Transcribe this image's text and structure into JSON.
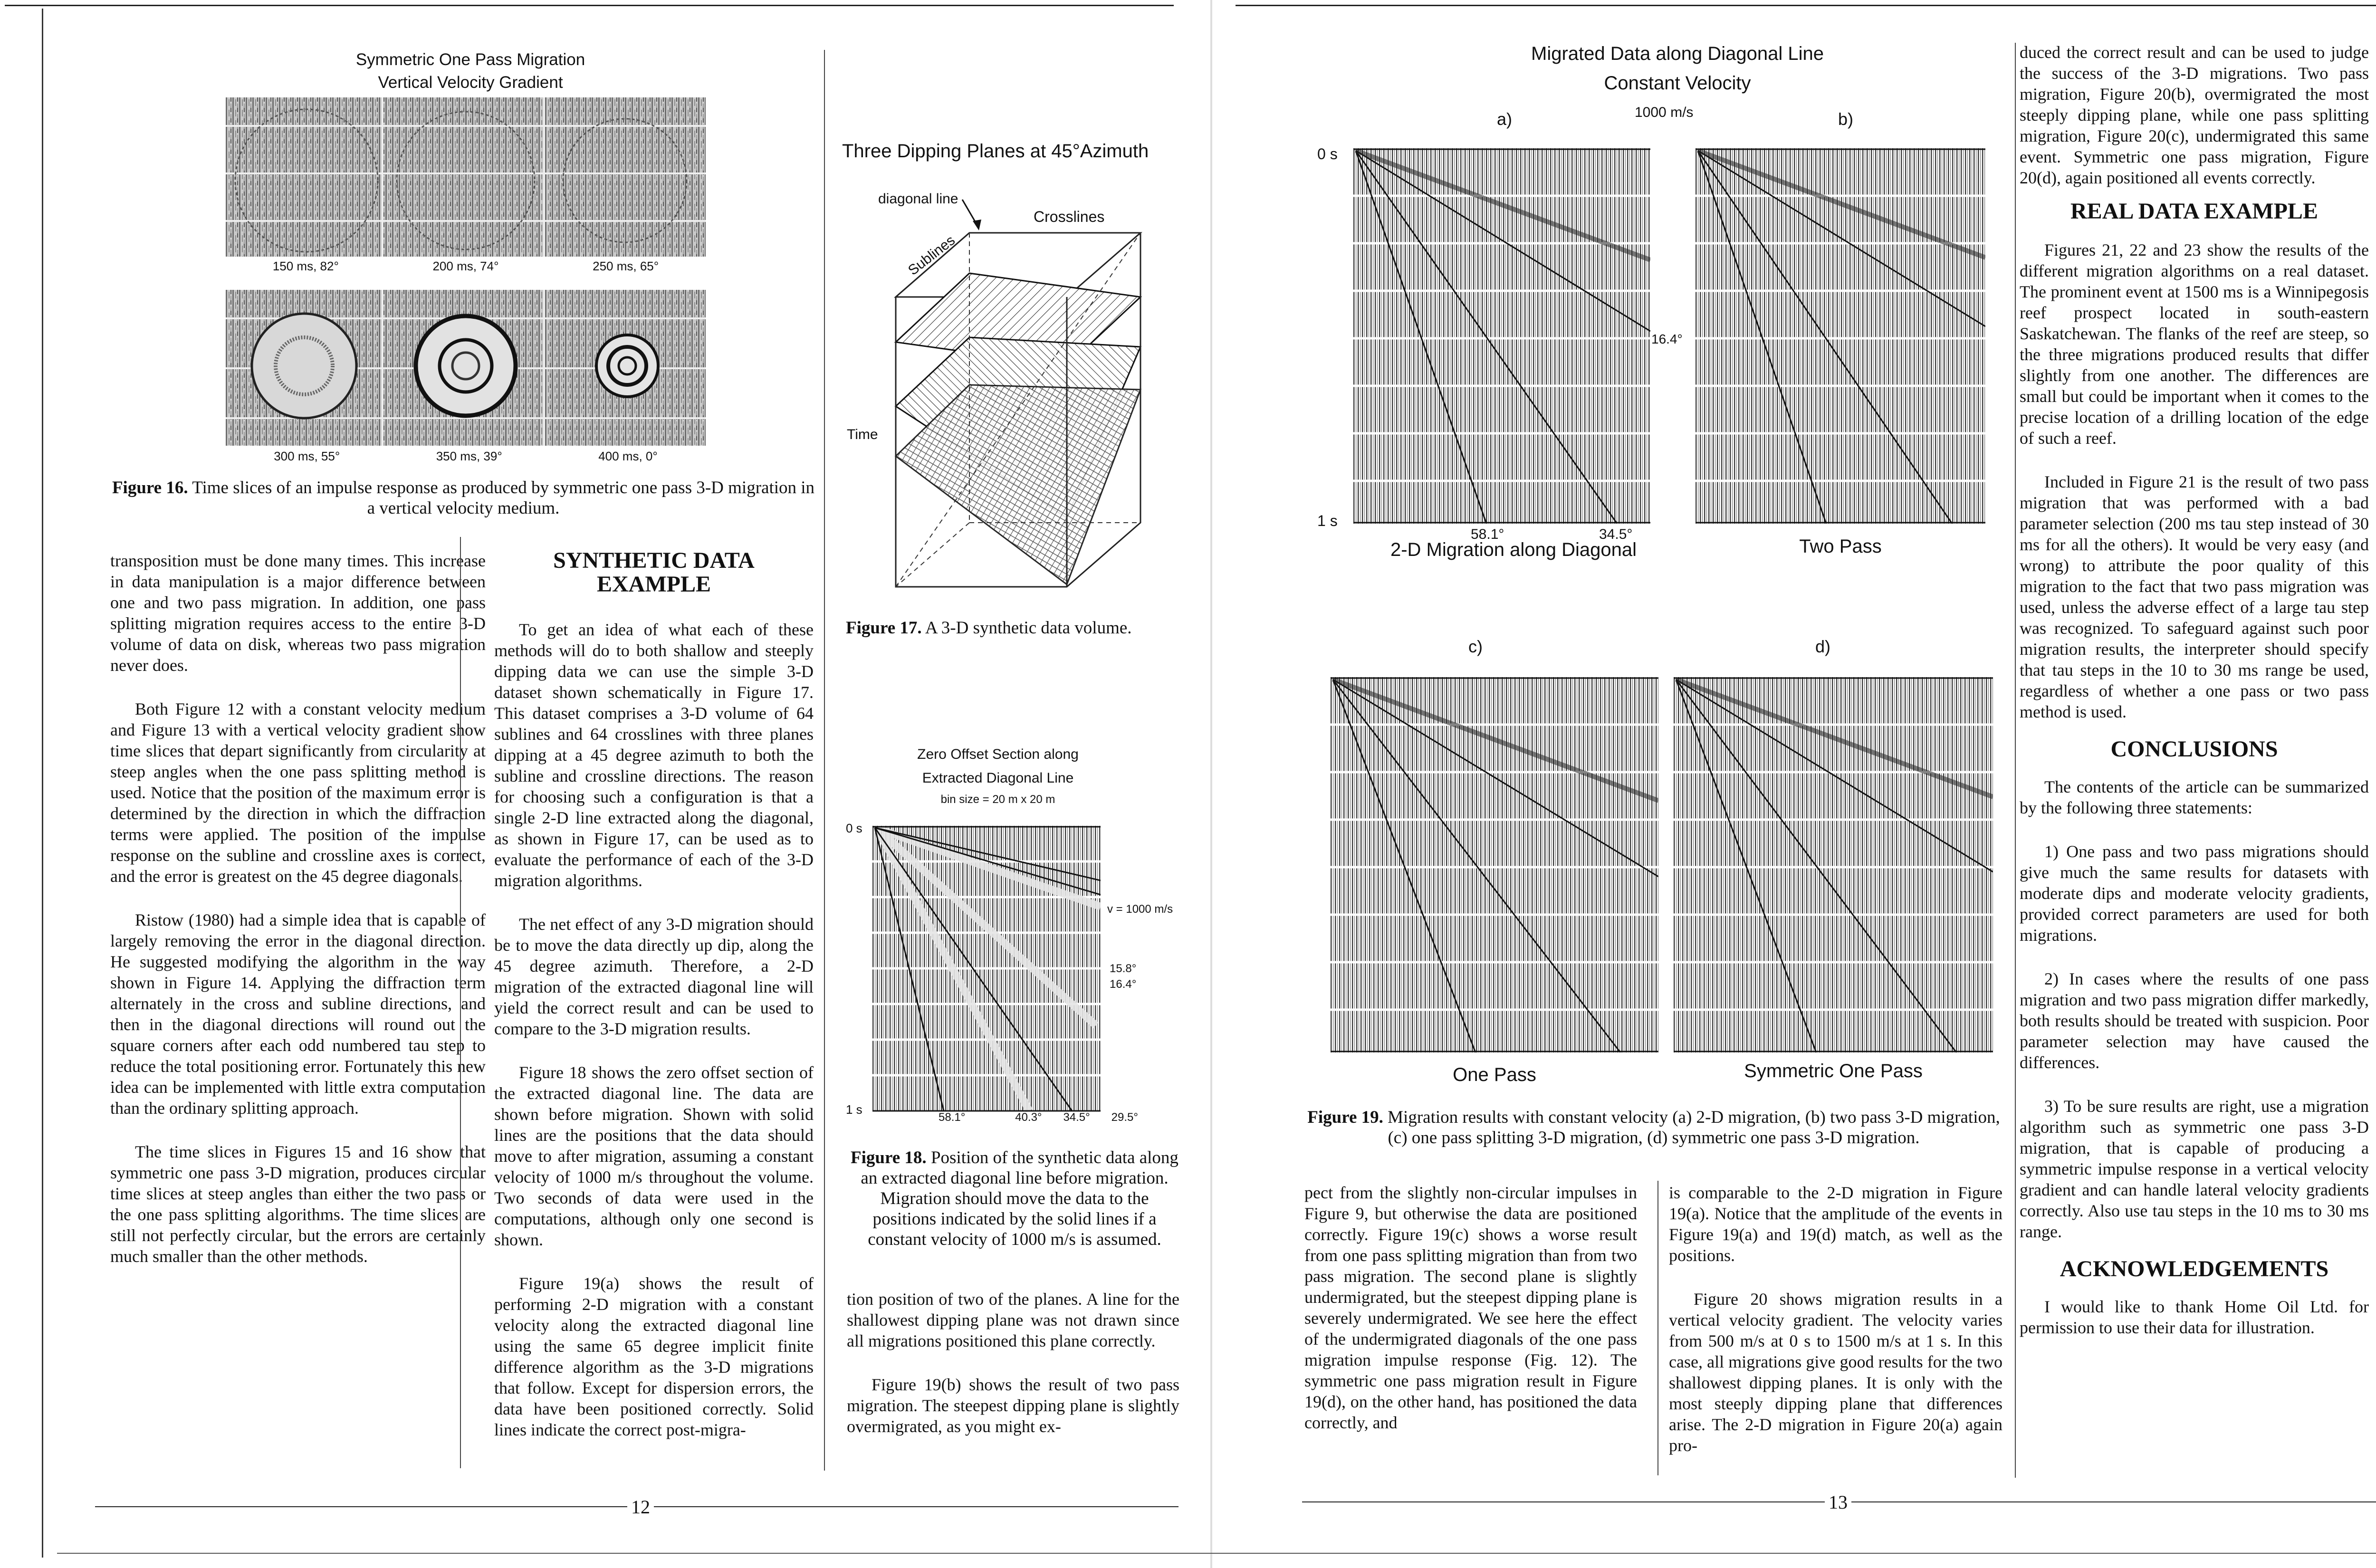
{
  "page_numbers": {
    "left": "12",
    "right": "13"
  },
  "fig16": {
    "title_line1": "Symmetric One Pass Migration",
    "title_line2": "Vertical Velocity Gradient",
    "row1_labels": [
      "150 ms, 82°",
      "200 ms, 74°",
      "250 ms, 65°"
    ],
    "row2_labels": [
      "300 ms, 55°",
      "350 ms, 39°",
      "400 ms, 0°"
    ],
    "caption_label": "Figure 16.",
    "caption_text": "Time slices of an impulse response as produced by symmetric one pass 3-D migration in a vertical velocity medium."
  },
  "col1": {
    "p1": "transposition must be done many times. This increase in data manipulation is a major difference between one and two pass migration. In addition, one pass splitting migration requires access to the entire 3-D volume of data on disk, whereas two pass migration never does.",
    "p2": "Both Figure 12 with a constant velocity medium and Figure 13 with a vertical velocity gradient show time slices that depart significantly from circularity at steep angles when the one pass splitting method is used. Notice that the position of the maximum error is determined by the direction in which the diffraction terms were applied. The position of the impulse response on the subline and crossline axes is correct, and the error is greatest on the 45 degree diagonals.",
    "p3": "Ristow (1980) had a simple idea that is capable of largely removing the error in the diagonal direction. He suggested modifying the algorithm in the way shown in Figure 14. Applying the diffraction term alternately in the cross and subline directions, and then in the diagonal directions will round out the square corners after each odd numbered tau step to reduce the total positioning error. Fortunately this new idea can be implemented with little extra computation than the ordinary splitting approach.",
    "p4": "The time slices in Figures 15 and 16 show that symmetric one pass 3-D migration, produces circular time slices at steep angles than either the two pass or the one pass splitting algorithms. The time slices are still not perfectly circular, but the errors are certainly much smaller than the other methods."
  },
  "col2": {
    "heading": "SYNTHETIC DATA EXAMPLE",
    "p1": "To get an idea of what each of these methods will do to both shallow and steeply dipping data we can use the simple 3-D dataset shown schematically in Figure 17. This dataset comprises a 3-D volume of 64 sublines and 64 crosslines with three planes dipping at a 45 degree azimuth to both the subline and crossline directions. The reason for choosing such a configuration is that a single 2-D line extracted along the diagonal, as shown in Figure 17, can be used as to evaluate the performance of each of the 3-D migration algorithms.",
    "p2": "The net effect of any 3-D migration should be to move the data directly up dip, along the 45 degree azimuth. Therefore, a 2-D migration of the extracted diagonal line will yield the correct result and can be used to compare to the 3-D migration results.",
    "p3": "Figure 18 shows the zero offset section of the extracted diagonal line. The data are shown before migration. Shown with solid lines are the positions that the data should move to after migration, assuming a constant velocity of 1000 m/s throughout the volume. Two seconds of data were used in the computations, although only one second is shown.",
    "p4": "Figure 19(a) shows the result of performing 2-D migration with a constant velocity along the extracted diagonal line using the same 65 degree implicit finite difference algorithm as the 3-D migrations that follow. Except for dispersion errors, the data have been positioned correctly. Solid lines indicate the correct post-migra-"
  },
  "fig17": {
    "title": "Three Dipping Planes at 45°Azimuth",
    "label_diagonal": "diagonal line",
    "label_crosslines": "Crosslines",
    "label_sublines": "Sublines",
    "label_time": "Time",
    "caption_label": "Figure 17.",
    "caption_text": "A 3-D synthetic data volume."
  },
  "fig18": {
    "title_line1": "Zero Offset Section along",
    "title_line2": "Extracted Diagonal Line",
    "subtitle": "bin size = 20 m x 20 m",
    "y_top": "0 s",
    "y_bottom": "1 s",
    "velocity": "v = 1000 m/s",
    "angle_a": "15.8°",
    "angle_b": "16.4°",
    "bottom_angles": [
      "58.1°",
      "40.3°",
      "34.5°",
      "29.5°"
    ],
    "caption_label": "Figure 18.",
    "caption_text": "Position of the synthetic data along an extracted diagonal line before migration. Migration should move the data to the positions indicated by the solid lines if a constant velocity of 1000 m/s is assumed."
  },
  "col3": {
    "p1": "tion position of two of the planes. A line for the shallowest dipping plane was not drawn since all migrations positioned this plane correctly.",
    "p2": "Figure 19(b) shows the result of two pass migration. The steepest dipping plane is slightly overmigrated, as you might ex-"
  },
  "fig19": {
    "title_line1": "Migrated Data along Diagonal Line",
    "title_line2": "Constant Velocity",
    "velocity": "1000 m/s",
    "panel_letters": [
      "a)",
      "b)",
      "c)",
      "d)"
    ],
    "panel_names": [
      "2-D Migration along Diagonal",
      "Two Pass",
      "One Pass",
      "Symmetric One Pass"
    ],
    "y_top": "0 s",
    "y_bottom": "1 s",
    "angle_mid": "16.4°",
    "bottom_angles": [
      "58.1°",
      "34.5°"
    ],
    "caption_label": "Figure 19.",
    "caption_text": "Migration results with constant velocity (a) 2-D migration, (b) two pass 3-D migration, (c) one pass splitting 3-D migration, (d) symmetric one pass 3-D migration."
  },
  "col4": {
    "p1": "pect from the slightly non-circular impulses in Figure 9, but otherwise the data are positioned correctly. Figure 19(c) shows a worse result from one pass splitting migration than from two pass migration. The second plane is slightly undermigrated, but the steepest dipping plane is severely undermigrated. We see here the effect of the undermigrated diagonals of the one pass migration impulse response (Fig. 12). The symmetric one pass migration result in Figure 19(d), on the other hand, has positioned the data correctly, and"
  },
  "col5": {
    "p1": "is comparable to the 2-D migration in Figure 19(a). Notice that the amplitude of the events in Figure 19(a) and 19(d) match, as well as the positions.",
    "p2": "Figure 20 shows migration results in a vertical velocity gradient. The velocity varies from 500 m/s at 0 s to 1500 m/s at 1 s. In this case, all migrations give good results for the two shallowest dipping planes. It is only with the most steeply dipping plane that differences arise. The 2-D migration in Figure 20(a) again pro-"
  },
  "col6": {
    "p1": "duced the correct result and can be used to judge the success of the 3-D migrations. Two pass migration, Figure 20(b), overmigrated the most steeply dipping plane, while one pass splitting migration, Figure 20(c), undermigrated this same event. Symmetric one pass migration, Figure 20(d), again positioned all events correctly.",
    "heading_real": "REAL DATA EXAMPLE",
    "p2": "Figures 21, 22 and 23 show the results of the different migration algorithms on a real dataset. The prominent event at 1500 ms is a Winnipegosis reef prospect located in south-eastern Saskatchewan. The flanks of the reef are steep, so the three migrations produced results that differ slightly from one another. The differences are small but could be important when it comes to the precise location of a drilling location of the edge of such a reef.",
    "p3": "Included in Figure 21 is the result of two pass migration that was performed with a bad parameter selection (200 ms tau step instead of 30 ms for all the others). It would be very easy (and wrong) to attribute the poor quality of this migration to the fact that two pass migration was used, unless the adverse effect of a large tau step was recognized. To safeguard against such poor migration results, the interpreter should specify that tau steps in the 10 to 30 ms range be used, regardless of whether a one pass or two pass method is used.",
    "heading_conc": "CONCLUSIONS",
    "p4": "The contents of the article can be summarized by the following three statements:",
    "p5": "1) One pass and two pass migrations should give much the same results for datasets with moderate dips and moderate velocity gradients, provided correct parameters are used for both migrations.",
    "p6": "2) In cases where the results of one pass migration and two pass migration differ markedly, both results should be treated with suspicion. Poor parameter selection may have caused the differences.",
    "p7": "3) To be sure results are right, use a migration algorithm such as symmetric one pass 3-D migration, that is capable of producing a symmetric impulse response in a vertical velocity gradient and can handle lateral velocity gradients correctly. Also use tau steps in the 10 ms to 30 ms range.",
    "heading_ack": "ACKNOWLEDGEMENTS",
    "p8": "I would like to thank Home Oil Ltd. for permission to use their data for illustration."
  }
}
